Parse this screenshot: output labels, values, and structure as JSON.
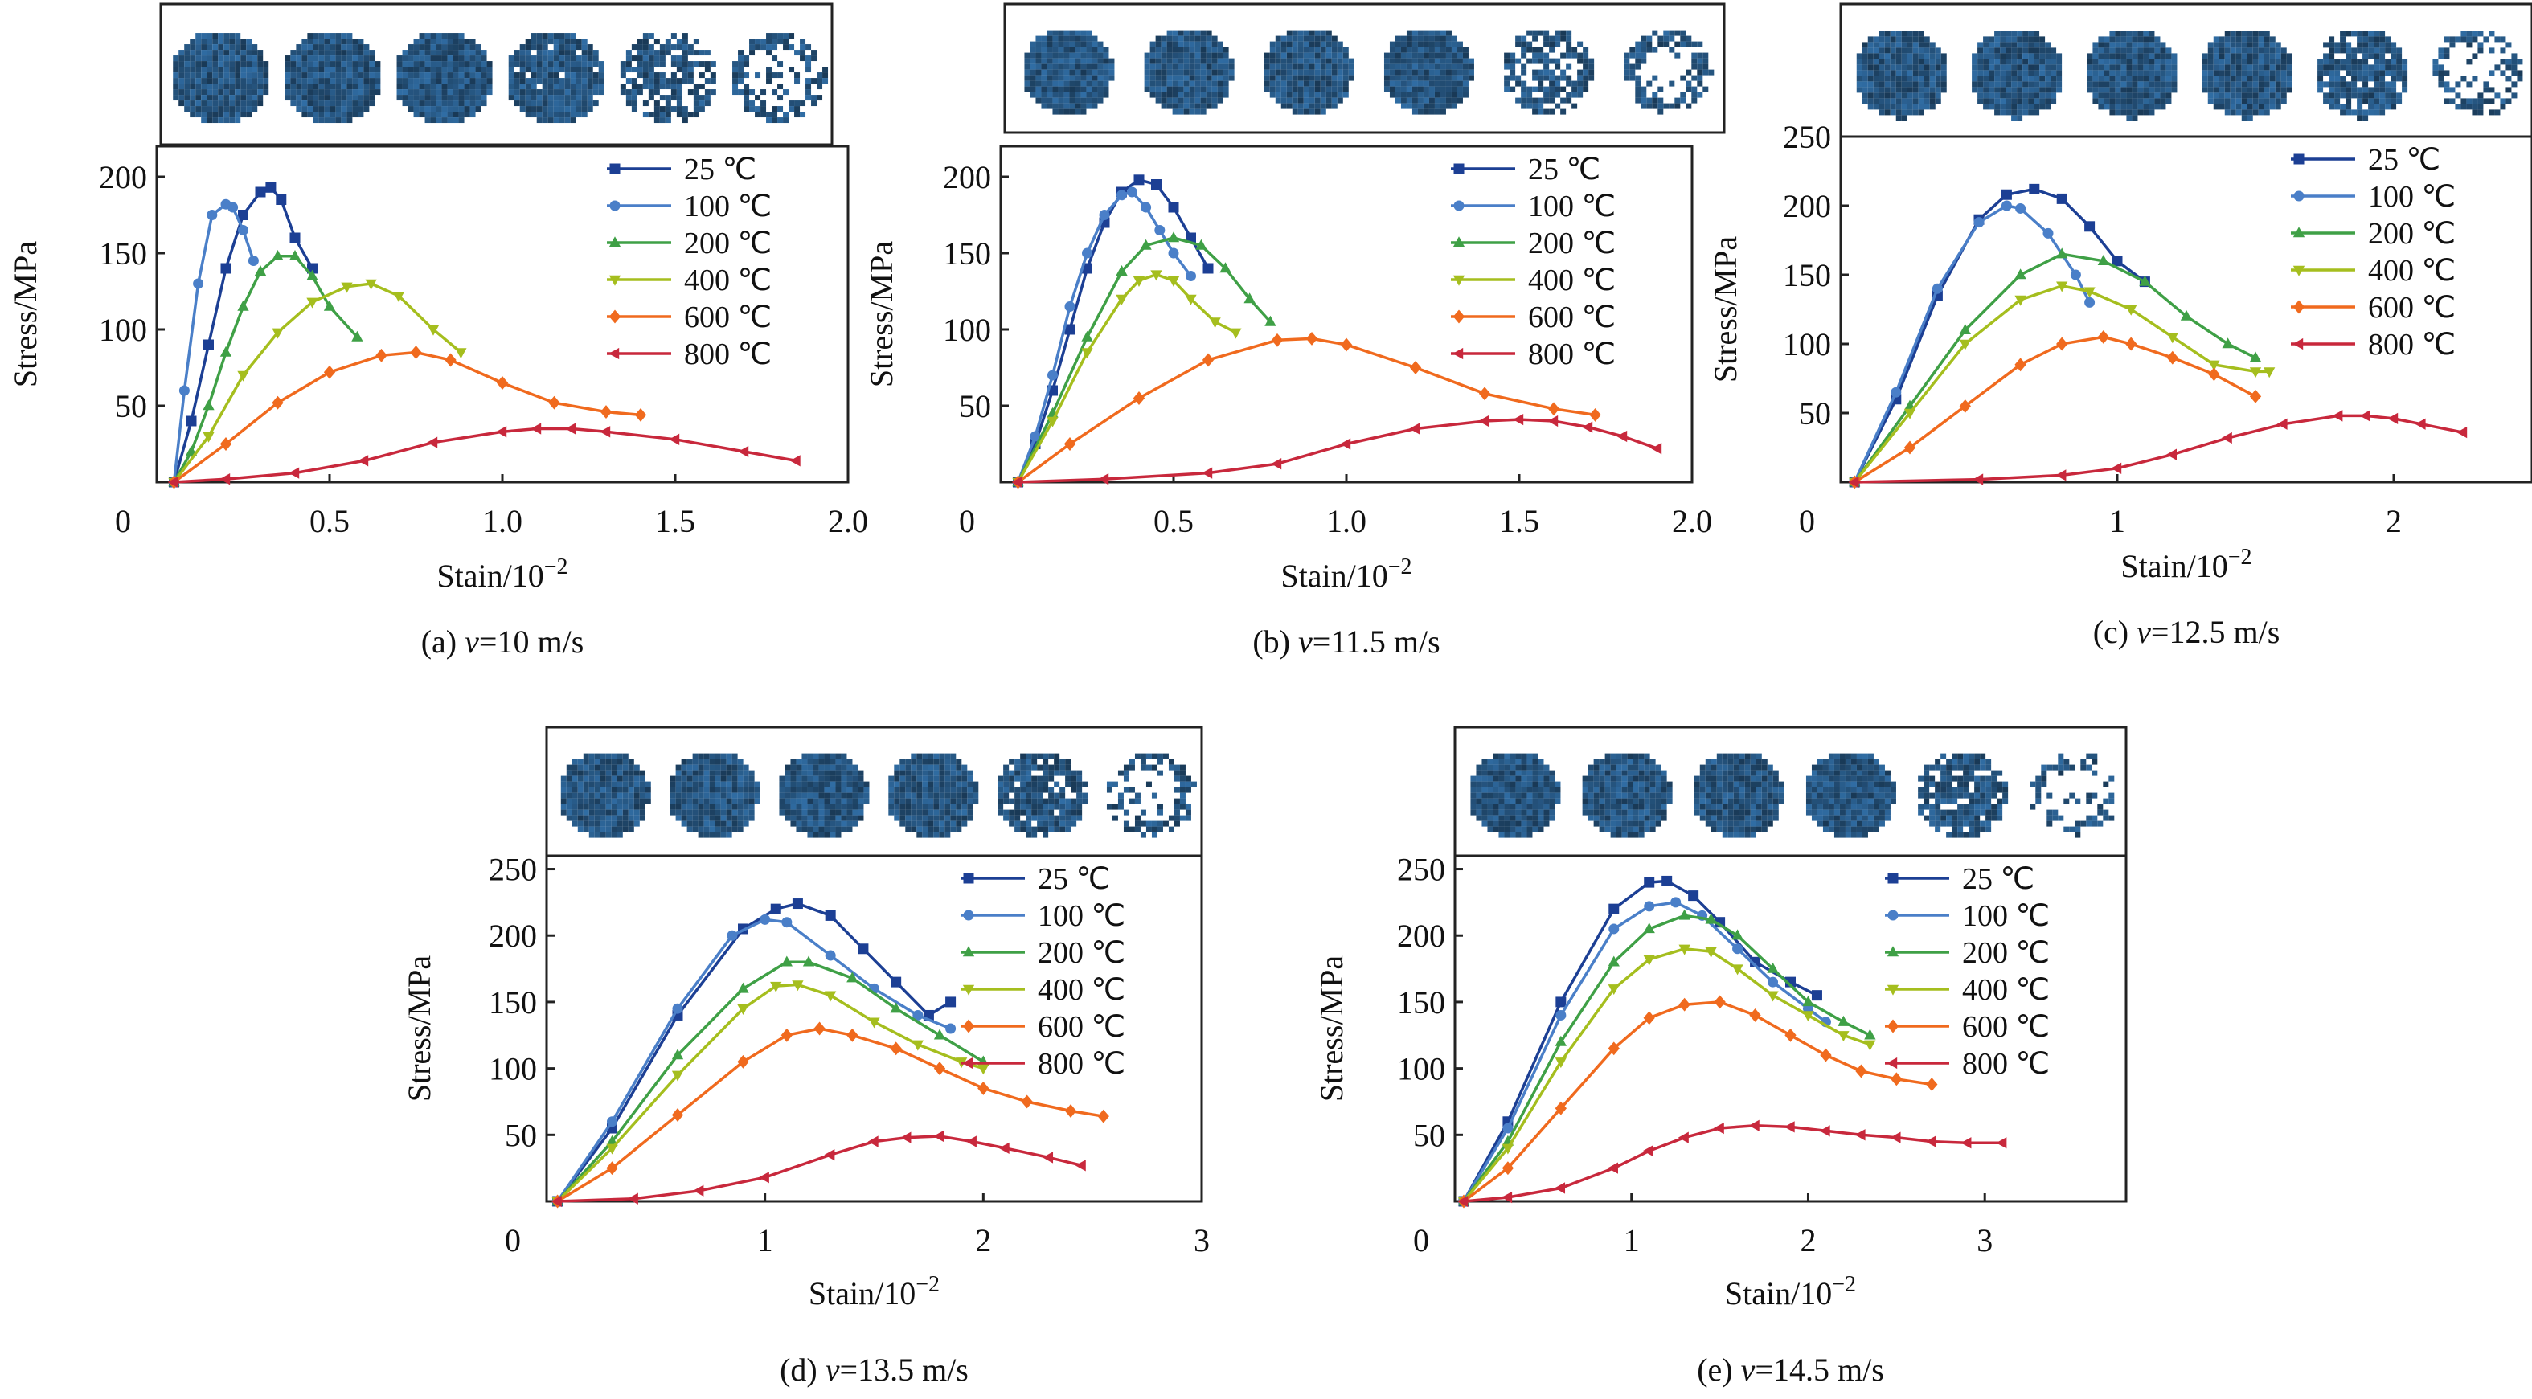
{
  "series_styles": [
    {
      "color": "#1c3f94",
      "marker": "square"
    },
    {
      "color": "#4a7fc8",
      "marker": "circle"
    },
    {
      "color": "#3fa046",
      "marker": "triangle-up"
    },
    {
      "color": "#a5be1e",
      "marker": "triangle-down"
    },
    {
      "color": "#f06a1e",
      "marker": "diamond"
    },
    {
      "color": "#c8283c",
      "marker": "triangle-left"
    }
  ],
  "sample_color": "#2a5f8f",
  "chart_data": [
    {
      "type": "line",
      "panel": "a",
      "caption_prefix": "(a) ",
      "caption_var": "v",
      "caption_value": "=10 m/s",
      "xlabel": "Stain/10",
      "xlabel_exp": "−2",
      "ylabel": "Stress/MPa",
      "xlim": [
        0,
        2.0
      ],
      "ylim": [
        0,
        220
      ],
      "xticks": [
        0,
        0.5,
        1.0,
        1.5,
        2.0
      ],
      "xtick_labels": [
        "0",
        "0.5",
        "1.0",
        "1.5",
        "2.0"
      ],
      "yticks": [
        50,
        100,
        150,
        200
      ],
      "ytick_labels": [
        "50",
        "100",
        "150",
        "200"
      ],
      "legend_position": "top-right",
      "sample_states": [
        1,
        1,
        1,
        0.95,
        0.7,
        0.45
      ],
      "series": [
        {
          "name": "25 ℃",
          "x": [
            0.05,
            0.1,
            0.15,
            0.2,
            0.25,
            0.3,
            0.33,
            0.36,
            0.4,
            0.45
          ],
          "y": [
            0,
            40,
            90,
            140,
            175,
            190,
            193,
            185,
            160,
            140
          ]
        },
        {
          "name": "100 ℃",
          "x": [
            0.05,
            0.08,
            0.12,
            0.16,
            0.2,
            0.22,
            0.25,
            0.28
          ],
          "y": [
            0,
            60,
            130,
            175,
            182,
            180,
            165,
            145
          ]
        },
        {
          "name": "200 ℃",
          "x": [
            0.05,
            0.1,
            0.15,
            0.2,
            0.25,
            0.3,
            0.35,
            0.4,
            0.45,
            0.5,
            0.58
          ],
          "y": [
            0,
            20,
            50,
            85,
            115,
            138,
            148,
            148,
            135,
            115,
            95
          ]
        },
        {
          "name": "400 ℃",
          "x": [
            0.05,
            0.15,
            0.25,
            0.35,
            0.45,
            0.55,
            0.62,
            0.7,
            0.8,
            0.88
          ],
          "y": [
            0,
            30,
            70,
            98,
            118,
            128,
            130,
            122,
            100,
            85
          ]
        },
        {
          "name": "600 ℃",
          "x": [
            0.05,
            0.2,
            0.35,
            0.5,
            0.65,
            0.75,
            0.85,
            1.0,
            1.15,
            1.3,
            1.4
          ],
          "y": [
            0,
            25,
            52,
            72,
            83,
            85,
            80,
            65,
            52,
            46,
            44
          ]
        },
        {
          "name": "800 ℃",
          "x": [
            0.05,
            0.2,
            0.4,
            0.6,
            0.8,
            1.0,
            1.1,
            1.2,
            1.3,
            1.5,
            1.7,
            1.85
          ],
          "y": [
            0,
            2,
            6,
            14,
            26,
            33,
            35,
            35,
            33,
            28,
            20,
            14
          ]
        }
      ]
    },
    {
      "type": "line",
      "panel": "b",
      "caption_prefix": "(b) ",
      "caption_var": "v",
      "caption_value": "=11.5 m/s",
      "xlabel": "Stain/10",
      "xlabel_exp": "−2",
      "ylabel": "Stress/MPa",
      "xlim": [
        0,
        2.0
      ],
      "ylim": [
        0,
        220
      ],
      "xticks": [
        0,
        0.5,
        1.0,
        1.5,
        2.0
      ],
      "xtick_labels": [
        "0",
        "0.5",
        "1.0",
        "1.5",
        "2.0"
      ],
      "yticks": [
        50,
        100,
        150,
        200
      ],
      "ytick_labels": [
        "50",
        "100",
        "150",
        "200"
      ],
      "legend_position": "top-right",
      "sample_states": [
        1,
        1,
        1,
        1,
        0.75,
        0.45
      ],
      "series": [
        {
          "name": "25 ℃",
          "x": [
            0.05,
            0.1,
            0.15,
            0.2,
            0.25,
            0.3,
            0.35,
            0.4,
            0.45,
            0.5,
            0.55,
            0.6
          ],
          "y": [
            0,
            25,
            60,
            100,
            140,
            170,
            190,
            198,
            195,
            180,
            160,
            140
          ]
        },
        {
          "name": "100 ℃",
          "x": [
            0.05,
            0.1,
            0.15,
            0.2,
            0.25,
            0.3,
            0.35,
            0.38,
            0.42,
            0.46,
            0.5,
            0.55
          ],
          "y": [
            0,
            30,
            70,
            115,
            150,
            175,
            188,
            190,
            180,
            165,
            150,
            135
          ]
        },
        {
          "name": "200 ℃",
          "x": [
            0.05,
            0.15,
            0.25,
            0.35,
            0.42,
            0.5,
            0.58,
            0.65,
            0.72,
            0.78
          ],
          "y": [
            0,
            45,
            95,
            138,
            155,
            160,
            155,
            140,
            120,
            105
          ]
        },
        {
          "name": "400 ℃",
          "x": [
            0.05,
            0.15,
            0.25,
            0.35,
            0.4,
            0.45,
            0.5,
            0.55,
            0.62,
            0.68
          ],
          "y": [
            0,
            40,
            85,
            120,
            132,
            136,
            132,
            120,
            105,
            98
          ]
        },
        {
          "name": "600 ℃",
          "x": [
            0.05,
            0.2,
            0.4,
            0.6,
            0.8,
            0.9,
            1.0,
            1.2,
            1.4,
            1.6,
            1.72
          ],
          "y": [
            0,
            25,
            55,
            80,
            93,
            94,
            90,
            75,
            58,
            48,
            44
          ]
        },
        {
          "name": "800 ℃",
          "x": [
            0.05,
            0.3,
            0.6,
            0.8,
            1.0,
            1.2,
            1.4,
            1.5,
            1.6,
            1.7,
            1.8,
            1.9
          ],
          "y": [
            0,
            2,
            6,
            12,
            25,
            35,
            40,
            41,
            40,
            36,
            30,
            22
          ]
        }
      ]
    },
    {
      "type": "line",
      "panel": "c",
      "caption_prefix": "(c) ",
      "caption_var": "v",
      "caption_value": "=12.5 m/s",
      "xlabel": "Stain/10",
      "xlabel_exp": "−2",
      "ylabel": "Stress/MPa",
      "xlim": [
        0,
        2.5
      ],
      "ylim": [
        0,
        250
      ],
      "xticks": [
        0,
        1,
        2
      ],
      "xtick_labels": [
        "0",
        "1",
        "2"
      ],
      "yticks": [
        50,
        100,
        150,
        200,
        250
      ],
      "ytick_labels": [
        "50",
        "100",
        "150",
        "200",
        "250"
      ],
      "legend_position": "top-right",
      "sample_states": [
        1,
        1,
        1,
        1,
        0.85,
        0.35
      ],
      "series": [
        {
          "name": "25 ℃",
          "x": [
            0.05,
            0.2,
            0.35,
            0.5,
            0.6,
            0.7,
            0.8,
            0.9,
            1.0,
            1.1
          ],
          "y": [
            0,
            60,
            135,
            190,
            208,
            212,
            205,
            185,
            160,
            145
          ]
        },
        {
          "name": "100 ℃",
          "x": [
            0.05,
            0.2,
            0.35,
            0.5,
            0.6,
            0.65,
            0.75,
            0.85,
            0.9
          ],
          "y": [
            0,
            65,
            140,
            188,
            200,
            198,
            180,
            150,
            130
          ]
        },
        {
          "name": "200 ℃",
          "x": [
            0.05,
            0.25,
            0.45,
            0.65,
            0.8,
            0.95,
            1.1,
            1.25,
            1.4,
            1.5
          ],
          "y": [
            0,
            55,
            110,
            150,
            165,
            160,
            145,
            120,
            100,
            90
          ]
        },
        {
          "name": "400 ℃",
          "x": [
            0.05,
            0.25,
            0.45,
            0.65,
            0.8,
            0.9,
            1.05,
            1.2,
            1.35,
            1.5,
            1.55
          ],
          "y": [
            0,
            50,
            100,
            132,
            142,
            138,
            125,
            105,
            85,
            80,
            80
          ]
        },
        {
          "name": "600 ℃",
          "x": [
            0.05,
            0.25,
            0.45,
            0.65,
            0.8,
            0.95,
            1.05,
            1.2,
            1.35,
            1.5
          ],
          "y": [
            0,
            25,
            55,
            85,
            100,
            105,
            100,
            90,
            78,
            62
          ]
        },
        {
          "name": "800 ℃",
          "x": [
            0.05,
            0.5,
            0.8,
            1.0,
            1.2,
            1.4,
            1.6,
            1.8,
            1.9,
            2.0,
            2.1,
            2.25
          ],
          "y": [
            0,
            2,
            5,
            10,
            20,
            32,
            42,
            48,
            48,
            46,
            42,
            36
          ]
        }
      ]
    },
    {
      "type": "line",
      "panel": "d",
      "caption_prefix": "(d) ",
      "caption_var": "v",
      "caption_value": "=13.5 m/s",
      "xlabel": "Stain/10",
      "xlabel_exp": "−2",
      "ylabel": "Stress/MPa",
      "xlim": [
        0,
        3
      ],
      "ylim": [
        0,
        260
      ],
      "xticks": [
        0,
        1,
        2,
        3
      ],
      "xtick_labels": [
        "0",
        "1",
        "2",
        "3"
      ],
      "yticks": [
        50,
        100,
        150,
        200,
        250
      ],
      "ytick_labels": [
        "50",
        "100",
        "150",
        "200",
        "250"
      ],
      "legend_position": "top-right",
      "sample_states": [
        1,
        1,
        1,
        1,
        0.85,
        0.35
      ],
      "series": [
        {
          "name": "25 ℃",
          "x": [
            0.05,
            0.3,
            0.6,
            0.9,
            1.05,
            1.15,
            1.3,
            1.45,
            1.6,
            1.75,
            1.85
          ],
          "y": [
            0,
            55,
            140,
            205,
            220,
            224,
            215,
            190,
            165,
            140,
            150
          ]
        },
        {
          "name": "100 ℃",
          "x": [
            0.05,
            0.3,
            0.6,
            0.85,
            1.0,
            1.1,
            1.3,
            1.5,
            1.7,
            1.85
          ],
          "y": [
            0,
            60,
            145,
            200,
            212,
            210,
            185,
            160,
            140,
            130
          ]
        },
        {
          "name": "200 ℃",
          "x": [
            0.05,
            0.3,
            0.6,
            0.9,
            1.1,
            1.2,
            1.4,
            1.6,
            1.8,
            2.0
          ],
          "y": [
            0,
            45,
            110,
            160,
            180,
            180,
            168,
            145,
            125,
            105
          ]
        },
        {
          "name": "400 ℃",
          "x": [
            0.05,
            0.3,
            0.6,
            0.9,
            1.05,
            1.15,
            1.3,
            1.5,
            1.7,
            1.9,
            2.0
          ],
          "y": [
            0,
            40,
            95,
            145,
            162,
            163,
            155,
            135,
            118,
            105,
            100
          ]
        },
        {
          "name": "600 ℃",
          "x": [
            0.05,
            0.3,
            0.6,
            0.9,
            1.1,
            1.25,
            1.4,
            1.6,
            1.8,
            2.0,
            2.2,
            2.4,
            2.55
          ],
          "y": [
            0,
            25,
            65,
            105,
            125,
            130,
            125,
            115,
            100,
            85,
            75,
            68,
            64
          ]
        },
        {
          "name": "800 ℃",
          "x": [
            0.05,
            0.4,
            0.7,
            1.0,
            1.3,
            1.5,
            1.65,
            1.8,
            1.95,
            2.1,
            2.3,
            2.45
          ],
          "y": [
            0,
            2,
            8,
            18,
            35,
            45,
            48,
            49,
            45,
            40,
            33,
            27
          ]
        }
      ]
    },
    {
      "type": "line",
      "panel": "e",
      "caption_prefix": "(e) ",
      "caption_var": "v",
      "caption_value": "=14.5 m/s",
      "xlabel": "Stain/10",
      "xlabel_exp": "−2",
      "ylabel": "Stress/MPa",
      "xlim": [
        0,
        3.8
      ],
      "ylim": [
        0,
        260
      ],
      "xticks": [
        0,
        1,
        2,
        3
      ],
      "xtick_labels": [
        "0",
        "1",
        "2",
        "3"
      ],
      "yticks": [
        50,
        100,
        150,
        200,
        250
      ],
      "ytick_labels": [
        "50",
        "100",
        "150",
        "200",
        "250"
      ],
      "legend_position": "top-right",
      "sample_states": [
        1,
        1,
        1,
        1,
        0.85,
        0.3
      ],
      "series": [
        {
          "name": "25 ℃",
          "x": [
            0.05,
            0.3,
            0.6,
            0.9,
            1.1,
            1.2,
            1.35,
            1.5,
            1.7,
            1.9,
            2.05
          ],
          "y": [
            0,
            60,
            150,
            220,
            240,
            241,
            230,
            210,
            180,
            165,
            155
          ]
        },
        {
          "name": "100 ℃",
          "x": [
            0.05,
            0.3,
            0.6,
            0.9,
            1.1,
            1.25,
            1.4,
            1.6,
            1.8,
            2.0,
            2.1
          ],
          "y": [
            0,
            55,
            140,
            205,
            222,
            225,
            215,
            190,
            165,
            145,
            135
          ]
        },
        {
          "name": "200 ℃",
          "x": [
            0.05,
            0.3,
            0.6,
            0.9,
            1.1,
            1.3,
            1.45,
            1.6,
            1.8,
            2.0,
            2.2,
            2.35
          ],
          "y": [
            0,
            45,
            120,
            180,
            205,
            215,
            212,
            200,
            175,
            150,
            135,
            125
          ]
        },
        {
          "name": "400 ℃",
          "x": [
            0.05,
            0.3,
            0.6,
            0.9,
            1.1,
            1.3,
            1.45,
            1.6,
            1.8,
            2.0,
            2.2,
            2.35
          ],
          "y": [
            0,
            40,
            105,
            160,
            182,
            190,
            188,
            175,
            155,
            140,
            125,
            118
          ]
        },
        {
          "name": "600 ℃",
          "x": [
            0.05,
            0.3,
            0.6,
            0.9,
            1.1,
            1.3,
            1.5,
            1.7,
            1.9,
            2.1,
            2.3,
            2.5,
            2.7
          ],
          "y": [
            0,
            25,
            70,
            115,
            138,
            148,
            150,
            140,
            125,
            110,
            98,
            92,
            88
          ]
        },
        {
          "name": "800 ℃",
          "x": [
            0.05,
            0.3,
            0.6,
            0.9,
            1.1,
            1.3,
            1.5,
            1.7,
            1.9,
            2.1,
            2.3,
            2.5,
            2.7,
            2.9,
            3.1
          ],
          "y": [
            0,
            3,
            10,
            25,
            38,
            48,
            55,
            57,
            56,
            53,
            50,
            48,
            45,
            44,
            44
          ]
        }
      ]
    }
  ]
}
